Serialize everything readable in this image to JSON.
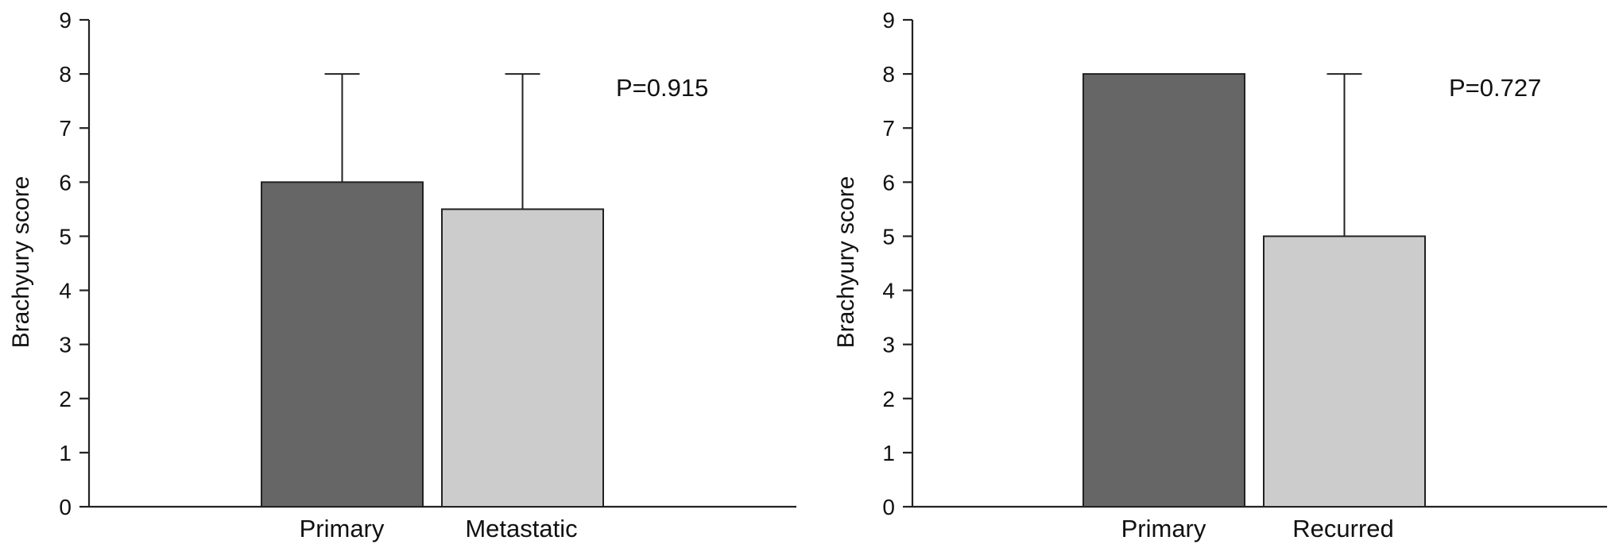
{
  "chart_data": [
    {
      "type": "bar",
      "categories": [
        "Primary",
        "Metastatic"
      ],
      "values": [
        6.0,
        5.5
      ],
      "error_upper": [
        8,
        8
      ],
      "ylabel": "Brachyury score",
      "xlabel": "",
      "ylim": [
        0,
        9
      ],
      "yticks": [
        "0",
        "1",
        "2",
        "3",
        "4",
        "5",
        "6",
        "7",
        "8",
        "9"
      ],
      "colors": [
        "#666666",
        "#cccccc"
      ],
      "annotation": "P=0.915",
      "grid": false
    },
    {
      "type": "bar",
      "categories": [
        "Primary",
        "Recurred"
      ],
      "values": [
        8.0,
        5.0
      ],
      "error_upper": [
        null,
        8
      ],
      "ylabel": "Brachyury score",
      "xlabel": "",
      "ylim": [
        0,
        9
      ],
      "yticks": [
        "0",
        "1",
        "2",
        "3",
        "4",
        "5",
        "6",
        "7",
        "8",
        "9"
      ],
      "colors": [
        "#666666",
        "#cccccc"
      ],
      "annotation": "P=0.727",
      "grid": false
    }
  ]
}
